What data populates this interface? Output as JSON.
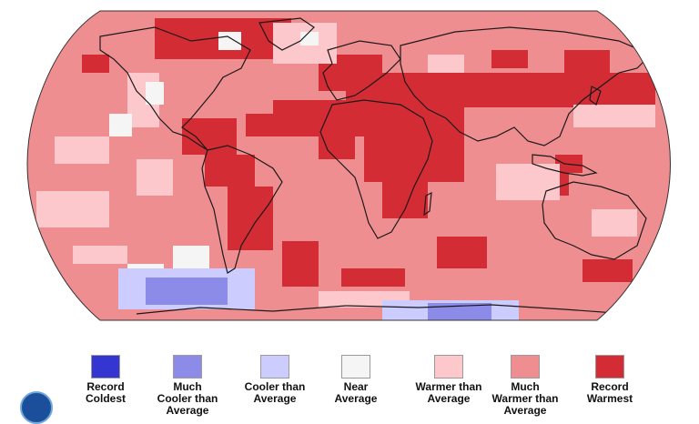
{
  "map": {
    "projection": "Robinson",
    "land_outline_color": "#1a1a1a",
    "dominant_category": "Much Warmer than Average"
  },
  "legend": {
    "items": [
      {
        "label": "Record\nColdest",
        "color": "#3535d2"
      },
      {
        "label": "Much\nCooler than\nAverage",
        "color": "#8c8ce8"
      },
      {
        "label": "Cooler than\nAverage",
        "color": "#ccccff"
      },
      {
        "label": "Near\nAverage",
        "color": "#f5f5f5"
      },
      {
        "label": "Warmer than\nAverage",
        "color": "#fcc8cc"
      },
      {
        "label": "Much\nWarmer than\nAverage",
        "color": "#ef8e90"
      },
      {
        "label": "Record\nWarmest",
        "color": "#d42c34"
      }
    ]
  },
  "logo": {
    "text": "NOAA"
  }
}
